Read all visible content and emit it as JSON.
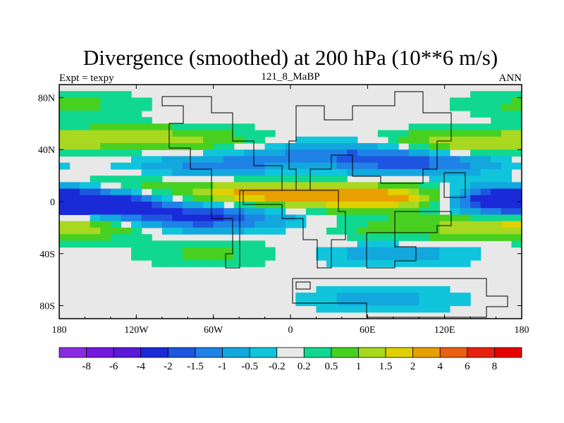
{
  "chart_data": {
    "type": "heatmap",
    "title": "Divergence (smoothed) at 200 hPa (10**6 m/s)",
    "subtitle": "121_8_MaBP",
    "left_label": "Expt = texpy",
    "right_label": "ANN",
    "xlim": [
      -180,
      180
    ],
    "ylim": [
      -90,
      90
    ],
    "x_ticks": [
      {
        "value": -180,
        "label": "180"
      },
      {
        "value": -120,
        "label": "120W"
      },
      {
        "value": -60,
        "label": "60W"
      },
      {
        "value": 0,
        "label": "0"
      },
      {
        "value": 60,
        "label": "60E"
      },
      {
        "value": 120,
        "label": "120E"
      },
      {
        "value": 180,
        "label": "180"
      }
    ],
    "y_ticks": [
      {
        "value": 80,
        "label": "80N"
      },
      {
        "value": 40,
        "label": "40N"
      },
      {
        "value": 0,
        "label": "0"
      },
      {
        "value": -40,
        "label": "40S"
      },
      {
        "value": -80,
        "label": "80S"
      }
    ],
    "colorbar": {
      "levels": [
        "-8",
        "-6",
        "-4",
        "-2",
        "-1.5",
        "-1",
        "-0.5",
        "-0.2",
        "0.2",
        "0.5",
        "1",
        "1.5",
        "2",
        "4",
        "6",
        "8"
      ],
      "colors": [
        "#8a2be2",
        "#7418e0",
        "#5a18d8",
        "#1a2ad8",
        "#1e55e0",
        "#1e82e6",
        "#12a8de",
        "#10c4dc",
        "#e8e8e8",
        "#10d890",
        "#48d020",
        "#a8d820",
        "#e0d000",
        "#e8a000",
        "#e86010",
        "#e82010",
        "#e80000"
      ]
    },
    "bands": [
      {
        "lat": 75,
        "lon": -170,
        "value": 0.6
      },
      {
        "lat": 48,
        "lon": -150,
        "value": 0.8
      },
      {
        "lat": 48,
        "lon": -80,
        "value": 0.9
      },
      {
        "lat": 45,
        "lon": 130,
        "value": 1.4
      },
      {
        "lat": 38,
        "lon": 40,
        "value": -1.2
      },
      {
        "lat": 30,
        "lon": 100,
        "value": -1.6
      },
      {
        "lat": 28,
        "lon": -60,
        "value": -1.2
      },
      {
        "lat": 10,
        "lon": -140,
        "value": 1.2
      },
      {
        "lat": 6,
        "lon": -20,
        "value": 2.2
      },
      {
        "lat": 3,
        "lon": 80,
        "value": 2.5
      },
      {
        "lat": 4,
        "lon": 175,
        "value": -3
      },
      {
        "lat": -3,
        "lon": -160,
        "value": -2.5
      },
      {
        "lat": -12,
        "lon": -70,
        "value": -2.2
      },
      {
        "lat": -18,
        "lon": -175,
        "value": 1.8
      },
      {
        "lat": -22,
        "lon": 90,
        "value": 0.7
      },
      {
        "lat": -40,
        "lon": 80,
        "value": -0.8
      },
      {
        "lat": -40,
        "lon": -60,
        "value": 0.6
      },
      {
        "lat": -75,
        "lon": 70,
        "value": -0.7
      }
    ]
  }
}
